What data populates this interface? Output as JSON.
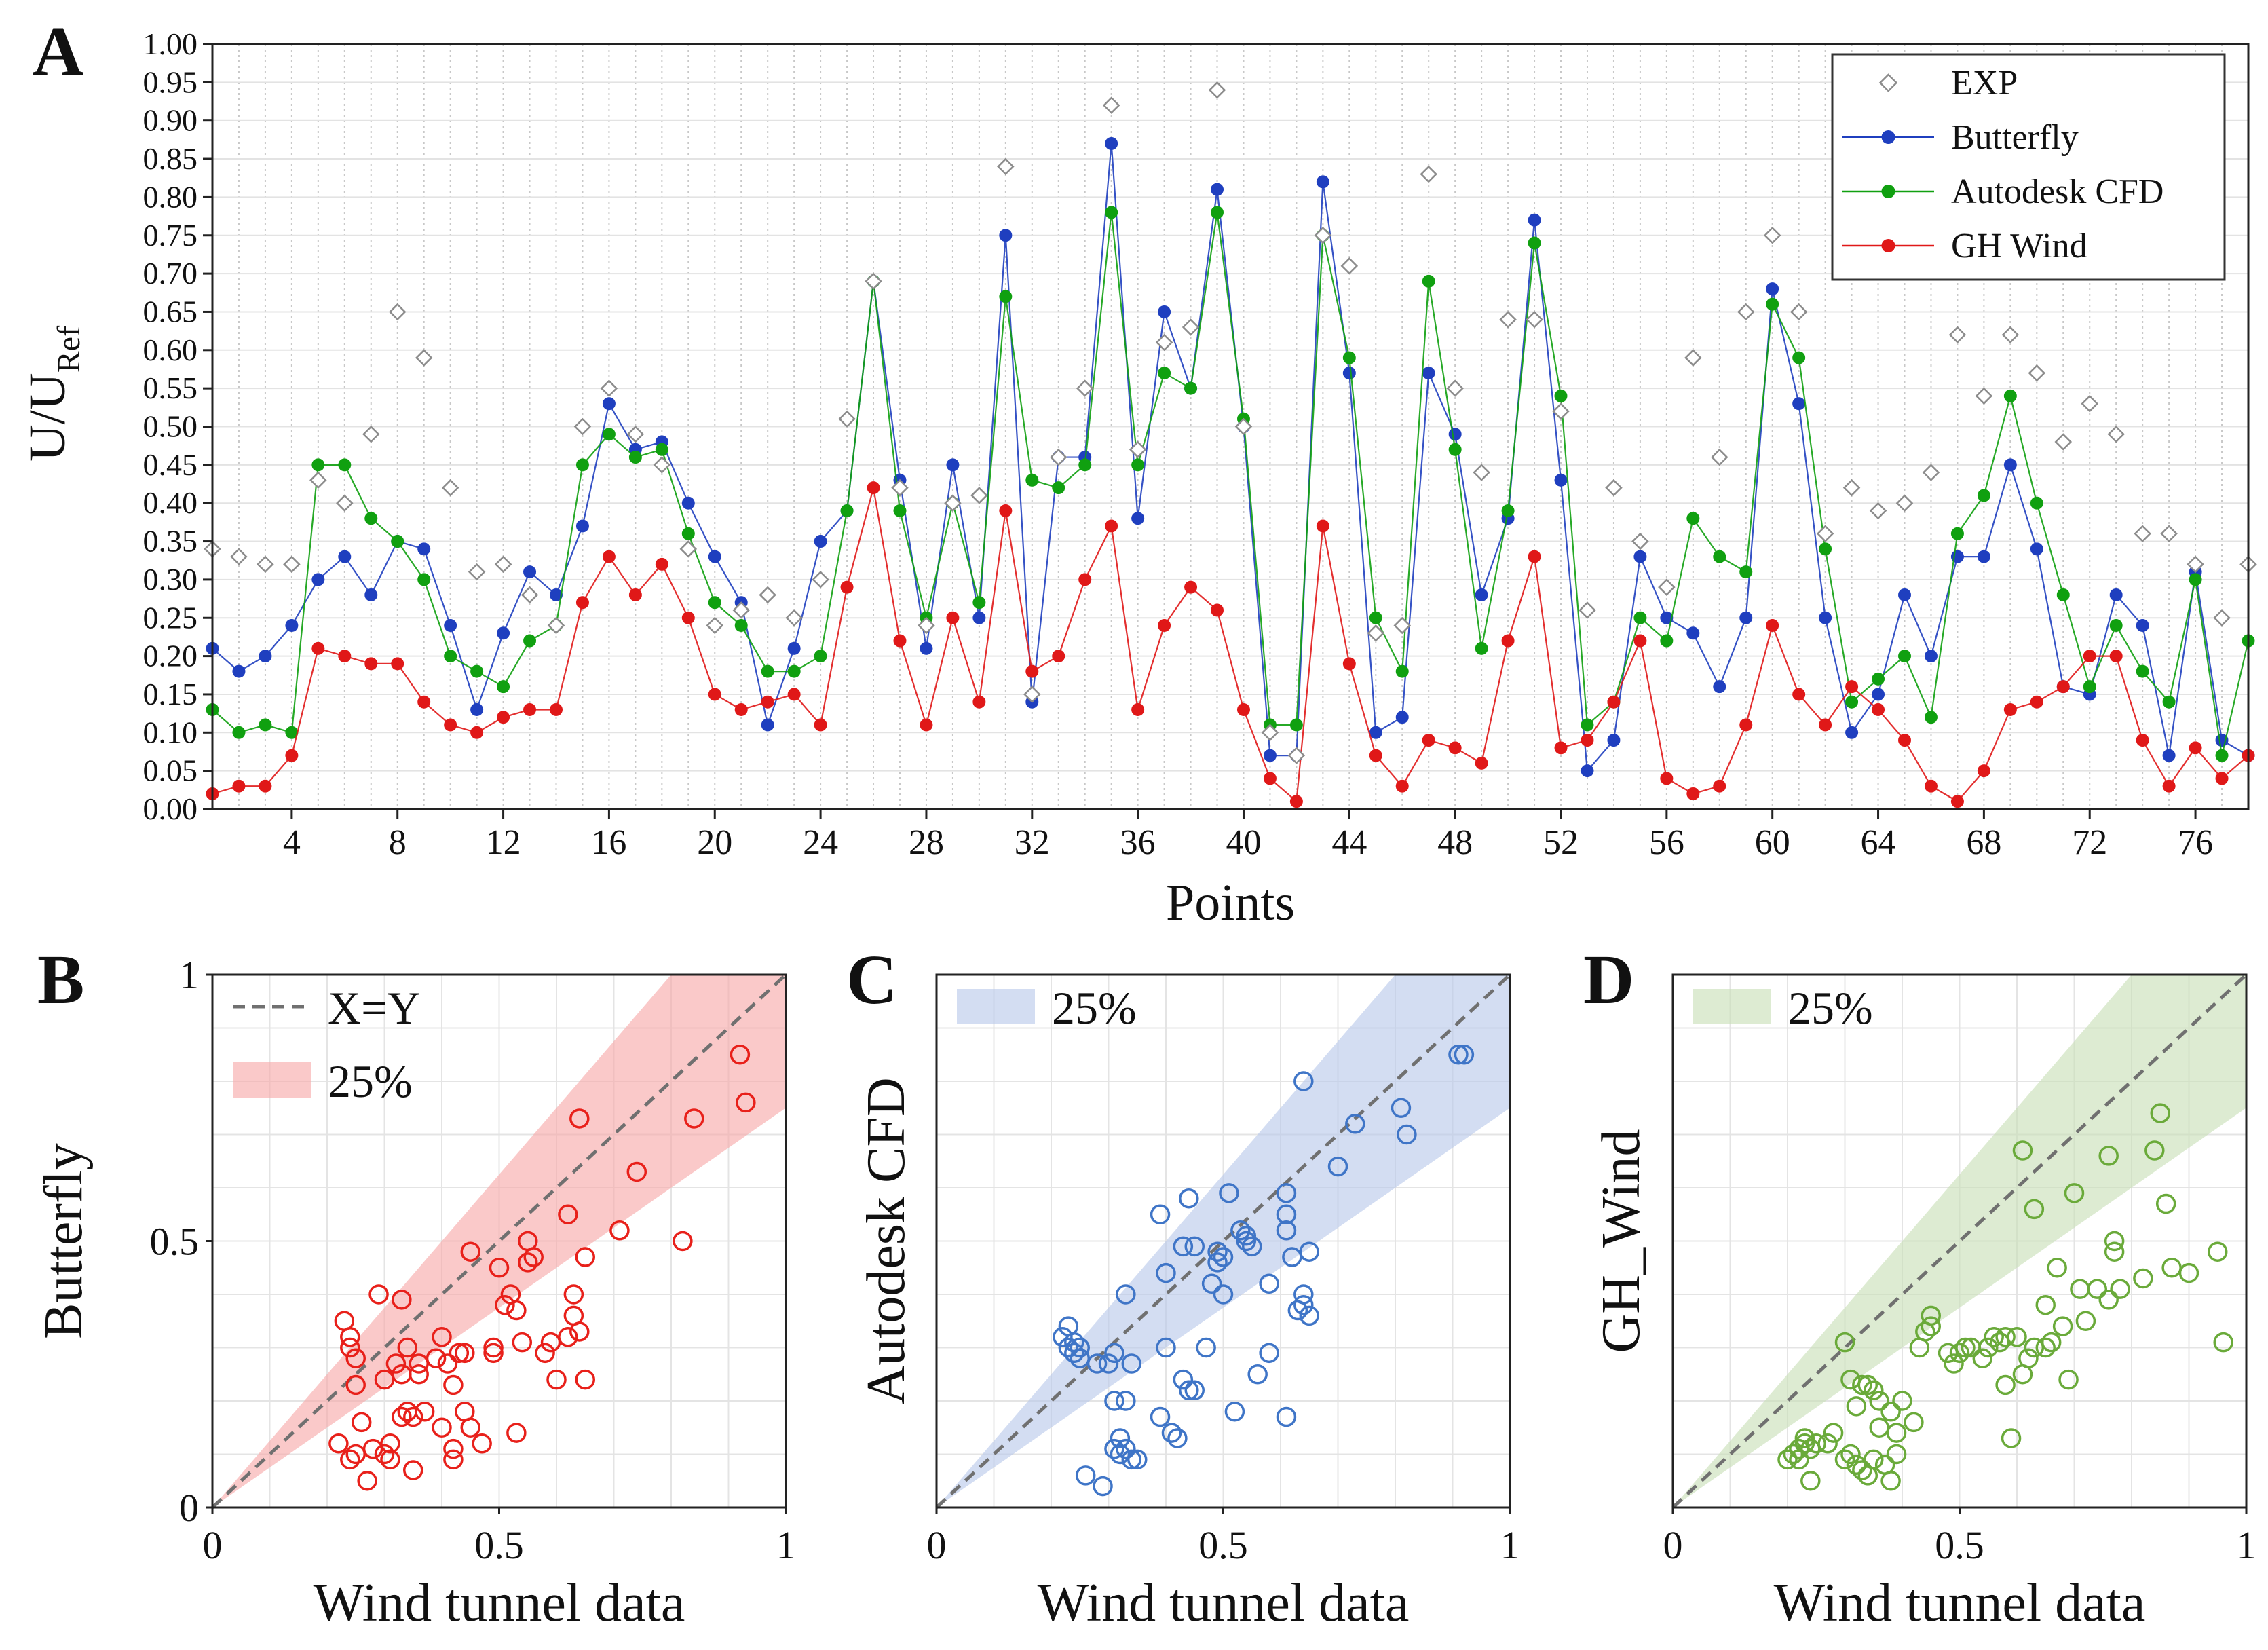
{
  "colors": {
    "exp": "#8c8c8c",
    "butterfly": "#1f3fbf",
    "autodesk": "#10a010",
    "ghwind": "#e01818",
    "scatter_b": "#e8201a",
    "scatter_c": "#3f75c7",
    "scatter_d": "#6aaa3a",
    "band_b": "#f7a8a8",
    "band_c": "#b8c8ea",
    "band_d": "#c8dfb6",
    "diag": "#707070"
  },
  "chart_data": [
    {
      "id": "A",
      "type": "line",
      "panel_letter": "A",
      "xlabel": "Points",
      "ylabel_main": "U/U",
      "ylabel_sub": "Ref",
      "xlim": [
        1,
        78
      ],
      "ylim": [
        0,
        1
      ],
      "x_ticks": [
        4,
        8,
        12,
        16,
        20,
        24,
        28,
        32,
        36,
        40,
        44,
        48,
        52,
        56,
        60,
        64,
        68,
        72,
        76
      ],
      "y_ticks": [
        "0.00",
        "0.05",
        "0.10",
        "0.15",
        "0.20",
        "0.25",
        "0.30",
        "0.35",
        "0.40",
        "0.45",
        "0.50",
        "0.55",
        "0.60",
        "0.65",
        "0.70",
        "0.75",
        "0.80",
        "0.85",
        "0.90",
        "0.95",
        "1.00"
      ],
      "grid": true,
      "legend_position": "top-right",
      "series": [
        {
          "name": "EXP",
          "marker": "diamond",
          "line": false,
          "values": [
            0.34,
            0.33,
            0.32,
            0.32,
            0.43,
            0.4,
            0.49,
            0.65,
            0.59,
            0.42,
            0.31,
            0.32,
            0.28,
            0.24,
            0.5,
            0.55,
            0.49,
            0.45,
            0.34,
            0.24,
            0.26,
            0.28,
            0.25,
            0.3,
            0.51,
            0.69,
            0.42,
            0.24,
            0.4,
            0.41,
            0.84,
            0.15,
            0.46,
            0.55,
            0.92,
            0.47,
            0.61,
            0.63,
            0.94,
            0.5,
            0.1,
            0.07,
            0.75,
            0.71,
            0.23,
            0.24,
            0.83,
            0.55,
            0.44,
            0.64,
            0.64,
            0.52,
            0.26,
            0.42,
            0.35,
            0.29,
            0.59,
            0.46,
            0.65,
            0.75,
            0.65,
            0.36,
            0.42,
            0.39,
            0.4,
            0.44,
            0.62,
            0.54,
            0.62,
            0.57,
            0.48,
            0.53,
            0.49,
            0.36,
            0.36,
            0.32,
            0.25,
            0.32
          ]
        },
        {
          "name": "Butterfly",
          "marker": "circle",
          "line": true,
          "values": [
            0.21,
            0.18,
            0.2,
            0.24,
            0.3,
            0.33,
            0.28,
            0.35,
            0.34,
            0.24,
            0.13,
            0.23,
            0.31,
            0.28,
            0.37,
            0.53,
            0.47,
            0.48,
            0.4,
            0.33,
            0.27,
            0.11,
            0.21,
            0.35,
            0.39,
            0.69,
            0.43,
            0.21,
            0.45,
            0.25,
            0.75,
            0.14,
            0.46,
            0.46,
            0.87,
            0.38,
            0.65,
            0.55,
            0.81,
            0.5,
            0.07,
            0.07,
            0.82,
            0.57,
            0.1,
            0.12,
            0.57,
            0.49,
            0.28,
            0.38,
            0.77,
            0.43,
            0.05,
            0.09,
            0.33,
            0.25,
            0.23,
            0.16,
            0.25,
            0.68,
            0.53,
            0.25,
            0.1,
            0.15,
            0.28,
            0.2,
            0.33,
            0.33,
            0.45,
            0.34,
            0.16,
            0.15,
            0.28,
            0.24,
            0.07,
            0.31,
            0.09,
            0.07
          ]
        },
        {
          "name": "Autodesk CFD",
          "marker": "circle",
          "line": true,
          "values": [
            0.13,
            0.1,
            0.11,
            0.1,
            0.45,
            0.45,
            0.38,
            0.35,
            0.3,
            0.2,
            0.18,
            0.16,
            0.22,
            0.24,
            0.45,
            0.49,
            0.46,
            0.47,
            0.36,
            0.27,
            0.24,
            0.18,
            0.18,
            0.2,
            0.39,
            0.69,
            0.39,
            0.25,
            0.4,
            0.27,
            0.67,
            0.43,
            0.42,
            0.45,
            0.78,
            0.45,
            0.57,
            0.55,
            0.78,
            0.51,
            0.11,
            0.11,
            0.75,
            0.59,
            0.25,
            0.18,
            0.69,
            0.47,
            0.21,
            0.39,
            0.74,
            0.54,
            0.11,
            0.14,
            0.25,
            0.22,
            0.38,
            0.33,
            0.31,
            0.66,
            0.59,
            0.34,
            0.14,
            0.17,
            0.2,
            0.12,
            0.36,
            0.41,
            0.54,
            0.4,
            0.28,
            0.16,
            0.24,
            0.18,
            0.14,
            0.3,
            0.07,
            0.22
          ]
        },
        {
          "name": "GH Wind",
          "marker": "circle",
          "line": true,
          "values": [
            0.02,
            0.03,
            0.03,
            0.07,
            0.21,
            0.2,
            0.19,
            0.19,
            0.14,
            0.11,
            0.1,
            0.12,
            0.13,
            0.13,
            0.27,
            0.33,
            0.28,
            0.32,
            0.25,
            0.15,
            0.13,
            0.14,
            0.15,
            0.11,
            0.29,
            0.42,
            0.22,
            0.11,
            0.25,
            0.14,
            0.39,
            0.18,
            0.2,
            0.3,
            0.37,
            0.13,
            0.24,
            0.29,
            0.26,
            0.13,
            0.04,
            0.01,
            0.37,
            0.19,
            0.07,
            0.03,
            0.09,
            0.08,
            0.06,
            0.22,
            0.33,
            0.08,
            0.09,
            0.14,
            0.22,
            0.04,
            0.02,
            0.03,
            0.11,
            0.24,
            0.15,
            0.11,
            0.16,
            0.13,
            0.09,
            0.03,
            0.01,
            0.05,
            0.13,
            0.14,
            0.16,
            0.2,
            0.2,
            0.09,
            0.03,
            0.08,
            0.04,
            0.07
          ]
        }
      ]
    },
    {
      "id": "B",
      "type": "scatter",
      "panel_letter": "B",
      "xlabel": "Wind tunnel data",
      "ylabel": "Butterfly",
      "xlim": [
        0,
        1
      ],
      "ylim": [
        0,
        1
      ],
      "tick_labels": [
        "0",
        "0.5",
        "1"
      ],
      "grid": true,
      "band_percent": 0.25,
      "legend": [
        {
          "kind": "dashed",
          "label": "X=Y"
        },
        {
          "kind": "band",
          "label": "25%"
        }
      ],
      "marker": "open-circle",
      "points": [
        [
          0.23,
          0.35
        ],
        [
          0.24,
          0.32
        ],
        [
          0.24,
          0.3
        ],
        [
          0.25,
          0.28
        ],
        [
          0.25,
          0.23
        ],
        [
          0.26,
          0.16
        ],
        [
          0.24,
          0.09
        ],
        [
          0.25,
          0.1
        ],
        [
          0.27,
          0.05
        ],
        [
          0.29,
          0.4
        ],
        [
          0.3,
          0.24
        ],
        [
          0.28,
          0.11
        ],
        [
          0.3,
          0.1
        ],
        [
          0.31,
          0.12
        ],
        [
          0.31,
          0.09
        ],
        [
          0.32,
          0.27
        ],
        [
          0.33,
          0.25
        ],
        [
          0.33,
          0.39
        ],
        [
          0.33,
          0.17
        ],
        [
          0.34,
          0.18
        ],
        [
          0.35,
          0.17
        ],
        [
          0.34,
          0.3
        ],
        [
          0.35,
          0.07
        ],
        [
          0.36,
          0.27
        ],
        [
          0.36,
          0.25
        ],
        [
          0.37,
          0.18
        ],
        [
          0.39,
          0.28
        ],
        [
          0.4,
          0.32
        ],
        [
          0.4,
          0.15
        ],
        [
          0.41,
          0.27
        ],
        [
          0.42,
          0.23
        ],
        [
          0.42,
          0.11
        ],
        [
          0.43,
          0.29
        ],
        [
          0.42,
          0.09
        ],
        [
          0.44,
          0.29
        ],
        [
          0.44,
          0.18
        ],
        [
          0.45,
          0.15
        ],
        [
          0.45,
          0.48
        ],
        [
          0.47,
          0.12
        ],
        [
          0.49,
          0.3
        ],
        [
          0.49,
          0.29
        ],
        [
          0.5,
          0.45
        ],
        [
          0.51,
          0.38
        ],
        [
          0.52,
          0.4
        ],
        [
          0.53,
          0.37
        ],
        [
          0.53,
          0.14
        ],
        [
          0.54,
          0.31
        ],
        [
          0.55,
          0.5
        ],
        [
          0.55,
          0.46
        ],
        [
          0.56,
          0.47
        ],
        [
          0.58,
          0.29
        ],
        [
          0.59,
          0.31
        ],
        [
          0.6,
          0.24
        ],
        [
          0.62,
          0.55
        ],
        [
          0.62,
          0.32
        ],
        [
          0.63,
          0.4
        ],
        [
          0.63,
          0.36
        ],
        [
          0.64,
          0.73
        ],
        [
          0.64,
          0.33
        ],
        [
          0.65,
          0.24
        ],
        [
          0.65,
          0.47
        ],
        [
          0.71,
          0.52
        ],
        [
          0.74,
          0.63
        ],
        [
          0.82,
          0.5
        ],
        [
          0.84,
          0.73
        ],
        [
          0.92,
          0.85
        ],
        [
          0.93,
          0.76
        ],
        [
          0.22,
          0.12
        ]
      ]
    },
    {
      "id": "C",
      "type": "scatter",
      "panel_letter": "C",
      "xlabel": "Wind tunnel data",
      "ylabel": "Autodesk CFD",
      "xlim": [
        0,
        1
      ],
      "ylim": [
        0,
        1
      ],
      "tick_labels": [
        "0",
        "0.5",
        "1"
      ],
      "grid": true,
      "band_percent": 0.25,
      "legend": [
        {
          "kind": "band",
          "label": "25%"
        }
      ],
      "marker": "open-circle",
      "points": [
        [
          0.22,
          0.32
        ],
        [
          0.23,
          0.34
        ],
        [
          0.23,
          0.3
        ],
        [
          0.24,
          0.31
        ],
        [
          0.24,
          0.29
        ],
        [
          0.25,
          0.3
        ],
        [
          0.25,
          0.28
        ],
        [
          0.26,
          0.06
        ],
        [
          0.28,
          0.27
        ],
        [
          0.29,
          0.04
        ],
        [
          0.3,
          0.27
        ],
        [
          0.31,
          0.29
        ],
        [
          0.31,
          0.2
        ],
        [
          0.31,
          0.11
        ],
        [
          0.32,
          0.1
        ],
        [
          0.32,
          0.13
        ],
        [
          0.33,
          0.4
        ],
        [
          0.33,
          0.2
        ],
        [
          0.33,
          0.11
        ],
        [
          0.34,
          0.27
        ],
        [
          0.34,
          0.09
        ],
        [
          0.35,
          0.09
        ],
        [
          0.39,
          0.55
        ],
        [
          0.39,
          0.17
        ],
        [
          0.4,
          0.44
        ],
        [
          0.4,
          0.3
        ],
        [
          0.41,
          0.14
        ],
        [
          0.42,
          0.13
        ],
        [
          0.43,
          0.49
        ],
        [
          0.43,
          0.24
        ],
        [
          0.44,
          0.58
        ],
        [
          0.44,
          0.22
        ],
        [
          0.45,
          0.49
        ],
        [
          0.45,
          0.22
        ],
        [
          0.47,
          0.3
        ],
        [
          0.48,
          0.42
        ],
        [
          0.49,
          0.46
        ],
        [
          0.49,
          0.48
        ],
        [
          0.5,
          0.4
        ],
        [
          0.5,
          0.47
        ],
        [
          0.51,
          0.59
        ],
        [
          0.52,
          0.18
        ],
        [
          0.53,
          0.52
        ],
        [
          0.54,
          0.5
        ],
        [
          0.54,
          0.51
        ],
        [
          0.55,
          0.49
        ],
        [
          0.56,
          0.25
        ],
        [
          0.58,
          0.29
        ],
        [
          0.58,
          0.42
        ],
        [
          0.61,
          0.17
        ],
        [
          0.61,
          0.59
        ],
        [
          0.61,
          0.52
        ],
        [
          0.61,
          0.55
        ],
        [
          0.62,
          0.47
        ],
        [
          0.63,
          0.37
        ],
        [
          0.64,
          0.8
        ],
        [
          0.64,
          0.4
        ],
        [
          0.64,
          0.38
        ],
        [
          0.65,
          0.36
        ],
        [
          0.65,
          0.48
        ],
        [
          0.7,
          0.64
        ],
        [
          0.73,
          0.72
        ],
        [
          0.81,
          0.75
        ],
        [
          0.82,
          0.7
        ],
        [
          0.91,
          0.85
        ],
        [
          0.92,
          0.85
        ]
      ]
    },
    {
      "id": "D",
      "type": "scatter",
      "panel_letter": "D",
      "xlabel": "Wind tunnel data",
      "ylabel": "GH_Wind",
      "xlim": [
        0,
        1
      ],
      "ylim": [
        0,
        1
      ],
      "tick_labels": [
        "0",
        "0.5",
        "1"
      ],
      "grid": true,
      "band_percent": 0.25,
      "legend": [
        {
          "kind": "band",
          "label": "25%"
        }
      ],
      "marker": "open-circle",
      "points": [
        [
          0.2,
          0.09
        ],
        [
          0.21,
          0.1
        ],
        [
          0.22,
          0.11
        ],
        [
          0.22,
          0.09
        ],
        [
          0.23,
          0.13
        ],
        [
          0.23,
          0.12
        ],
        [
          0.24,
          0.05
        ],
        [
          0.24,
          0.11
        ],
        [
          0.25,
          0.12
        ],
        [
          0.27,
          0.12
        ],
        [
          0.28,
          0.14
        ],
        [
          0.3,
          0.09
        ],
        [
          0.3,
          0.31
        ],
        [
          0.31,
          0.24
        ],
        [
          0.31,
          0.1
        ],
        [
          0.32,
          0.08
        ],
        [
          0.32,
          0.19
        ],
        [
          0.33,
          0.23
        ],
        [
          0.33,
          0.07
        ],
        [
          0.34,
          0.23
        ],
        [
          0.34,
          0.06
        ],
        [
          0.35,
          0.22
        ],
        [
          0.35,
          0.09
        ],
        [
          0.36,
          0.2
        ],
        [
          0.36,
          0.15
        ],
        [
          0.37,
          0.08
        ],
        [
          0.38,
          0.18
        ],
        [
          0.38,
          0.05
        ],
        [
          0.39,
          0.1
        ],
        [
          0.39,
          0.14
        ],
        [
          0.4,
          0.2
        ],
        [
          0.42,
          0.16
        ],
        [
          0.43,
          0.3
        ],
        [
          0.44,
          0.33
        ],
        [
          0.45,
          0.36
        ],
        [
          0.45,
          0.34
        ],
        [
          0.48,
          0.29
        ],
        [
          0.49,
          0.27
        ],
        [
          0.5,
          0.29
        ],
        [
          0.51,
          0.3
        ],
        [
          0.52,
          0.3
        ],
        [
          0.54,
          0.28
        ],
        [
          0.55,
          0.3
        ],
        [
          0.56,
          0.32
        ],
        [
          0.57,
          0.31
        ],
        [
          0.58,
          0.23
        ],
        [
          0.59,
          0.13
        ],
        [
          0.58,
          0.32
        ],
        [
          0.6,
          0.32
        ],
        [
          0.61,
          0.67
        ],
        [
          0.61,
          0.25
        ],
        [
          0.62,
          0.28
        ],
        [
          0.63,
          0.56
        ],
        [
          0.63,
          0.3
        ],
        [
          0.65,
          0.38
        ],
        [
          0.65,
          0.3
        ],
        [
          0.66,
          0.31
        ],
        [
          0.67,
          0.45
        ],
        [
          0.68,
          0.34
        ],
        [
          0.69,
          0.24
        ],
        [
          0.7,
          0.59
        ],
        [
          0.71,
          0.41
        ],
        [
          0.72,
          0.35
        ],
        [
          0.74,
          0.41
        ],
        [
          0.76,
          0.39
        ],
        [
          0.76,
          0.66
        ],
        [
          0.77,
          0.5
        ],
        [
          0.77,
          0.48
        ],
        [
          0.78,
          0.41
        ],
        [
          0.82,
          0.43
        ],
        [
          0.84,
          0.67
        ],
        [
          0.85,
          0.74
        ],
        [
          0.86,
          0.57
        ],
        [
          0.87,
          0.45
        ],
        [
          0.9,
          0.44
        ],
        [
          0.95,
          0.48
        ],
        [
          0.96,
          0.31
        ]
      ]
    }
  ]
}
